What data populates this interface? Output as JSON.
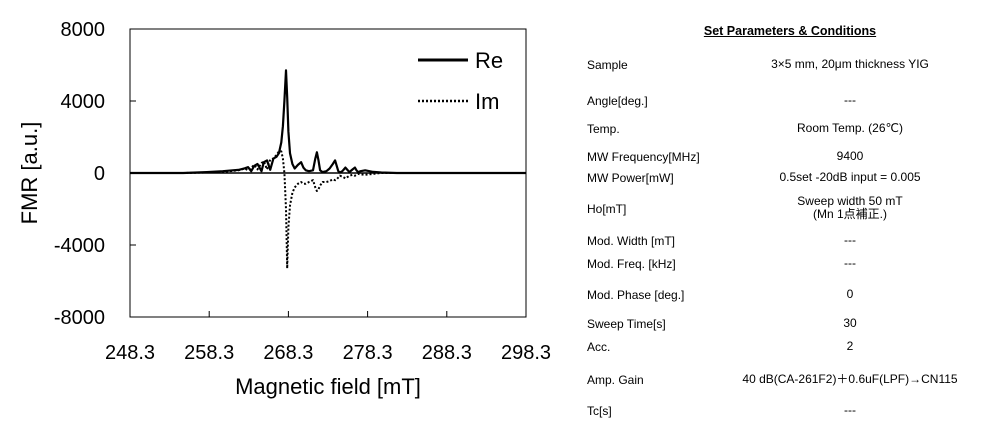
{
  "chart_data": {
    "type": "line",
    "xlabel": "Magnetic field [mT]",
    "ylabel": "FMR [a.u.]",
    "xlim": [
      248.3,
      298.3
    ],
    "ylim": [
      -8000,
      8000
    ],
    "xticks": [
      "248.3",
      "258.3",
      "268.3",
      "278.3",
      "288.3",
      "298.3"
    ],
    "yticks": [
      "8000",
      "4000",
      "0",
      "-4000",
      "-8000"
    ],
    "grid": false,
    "legend": "top-right",
    "series": [
      {
        "name": "Re",
        "style": "solid",
        "x": [
          248.3,
          255.0,
          258.0,
          260.0,
          262.0,
          262.8,
          263.2,
          263.6,
          264.0,
          264.4,
          264.9,
          265.2,
          265.6,
          266.0,
          266.4,
          266.8,
          267.1,
          267.4,
          267.6,
          267.8,
          268.0,
          268.15,
          268.3,
          268.5,
          268.8,
          269.1,
          269.5,
          269.9,
          270.2,
          270.5,
          270.9,
          271.4,
          271.7,
          271.9,
          272.1,
          272.3,
          272.6,
          273.1,
          273.5,
          273.9,
          274.2,
          274.4,
          274.6,
          274.8,
          275.1,
          275.5,
          276.0,
          276.4,
          276.7,
          276.9,
          277.1,
          277.4,
          278.0,
          279.0,
          280.0,
          282.0,
          286.0,
          290.0,
          298.3
        ],
        "values": [
          0,
          0,
          50,
          100,
          170,
          260,
          330,
          100,
          400,
          500,
          100,
          600,
          700,
          180,
          800,
          900,
          1100,
          1700,
          2600,
          4000,
          5700,
          4200,
          2300,
          1100,
          500,
          250,
          450,
          600,
          300,
          150,
          100,
          150,
          800,
          1150,
          700,
          150,
          50,
          100,
          250,
          500,
          700,
          400,
          100,
          30,
          100,
          300,
          50,
          200,
          300,
          150,
          50,
          100,
          150,
          60,
          30,
          0,
          0,
          0,
          0
        ]
      },
      {
        "name": "Im",
        "style": "dotted",
        "x": [
          248.3,
          255.0,
          258.0,
          260.0,
          262.0,
          262.8,
          263.2,
          263.6,
          264.0,
          264.4,
          264.9,
          265.2,
          265.6,
          266.0,
          266.4,
          266.8,
          267.1,
          267.4,
          267.6,
          267.8,
          268.0,
          268.15,
          268.3,
          268.5,
          268.8,
          269.1,
          269.5,
          269.9,
          270.2,
          270.5,
          270.9,
          271.4,
          271.7,
          271.9,
          272.1,
          272.3,
          272.6,
          273.1,
          273.5,
          273.9,
          274.2,
          274.4,
          274.6,
          274.8,
          275.1,
          275.5,
          276.0,
          276.4,
          276.7,
          276.9,
          277.1,
          277.4,
          278.0,
          279.0,
          280.0,
          282.0,
          286.0,
          290.0,
          298.3
        ],
        "values": [
          0,
          0,
          30,
          60,
          150,
          250,
          150,
          300,
          450,
          200,
          550,
          650,
          200,
          750,
          800,
          1000,
          1200,
          1200,
          800,
          0,
          -2000,
          -5300,
          -3000,
          -1800,
          -1100,
          -800,
          -600,
          -500,
          -600,
          -600,
          -500,
          -400,
          -800,
          -1000,
          -900,
          -700,
          -500,
          -500,
          -450,
          -350,
          -400,
          -350,
          -250,
          -150,
          -200,
          -300,
          -150,
          -100,
          -150,
          -100,
          -50,
          -80,
          -100,
          -50,
          0,
          0,
          0,
          0,
          0
        ]
      }
    ]
  },
  "params": {
    "title": "Set Parameters & Conditions",
    "rows": [
      {
        "label": "Sample",
        "value": "3×5 mm, 20μm thickness YIG"
      },
      {
        "label": "Angle[deg.]",
        "value": "---"
      },
      {
        "label": "Temp.",
        "value": "Room Temp. (26℃)"
      },
      {
        "label": "MW Frequency[MHz]",
        "value": "9400"
      },
      {
        "label": "MW Power[mW]",
        "value": "0.5set  -20dB  input = 0.005"
      },
      {
        "label": "Ho[mT]",
        "value": "Sweep width 50 mT\n(Mn 1点補正.)"
      },
      {
        "label": "Mod. Width [mT]",
        "value": "---"
      },
      {
        "label": "Mod. Freq. [kHz]",
        "value": "---"
      },
      {
        "label": "Mod. Phase [deg.]",
        "value": "0"
      },
      {
        "label": "Sweep Time[s]",
        "value": "30"
      },
      {
        "label": "Acc.",
        "value": "2"
      },
      {
        "label": "Amp. Gain",
        "value": "40 dB(CA-261F2)＋0.6uF(LPF)→CN115"
      },
      {
        "label": "Tc[s]",
        "value": "---"
      }
    ]
  }
}
